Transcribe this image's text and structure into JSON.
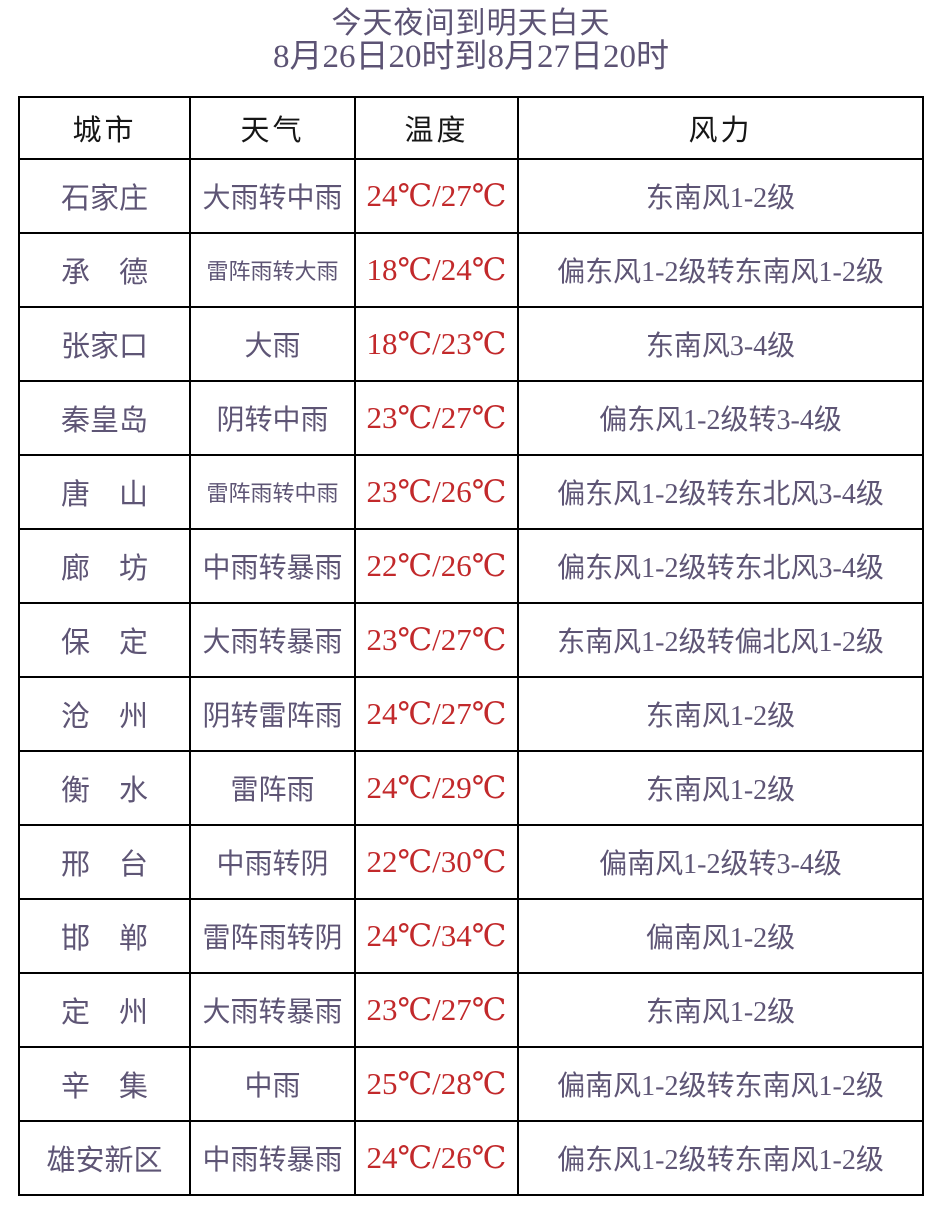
{
  "title": {
    "line1": "今天夜间到明天白天",
    "line2": "8月26日20时到8月27日20时"
  },
  "table": {
    "headers": [
      "城市",
      "天气",
      "温度",
      "风力"
    ],
    "rows": [
      {
        "city": "石家庄",
        "weather": "大雨转中雨",
        "temp": "24℃/27℃",
        "wind": "东南风1-2级"
      },
      {
        "city": "承　德",
        "weather": "雷阵雨转大雨",
        "temp": "18℃/24℃",
        "wind": "偏东风1-2级转东南风1-2级"
      },
      {
        "city": "张家口",
        "weather": "大雨",
        "temp": "18℃/23℃",
        "wind": "东南风3-4级"
      },
      {
        "city": "秦皇岛",
        "weather": "阴转中雨",
        "temp": "23℃/27℃",
        "wind": "偏东风1-2级转3-4级"
      },
      {
        "city": "唐　山",
        "weather": "雷阵雨转中雨",
        "temp": "23℃/26℃",
        "wind": "偏东风1-2级转东北风3-4级"
      },
      {
        "city": "廊　坊",
        "weather": "中雨转暴雨",
        "temp": "22℃/26℃",
        "wind": "偏东风1-2级转东北风3-4级"
      },
      {
        "city": "保　定",
        "weather": "大雨转暴雨",
        "temp": "23℃/27℃",
        "wind": "东南风1-2级转偏北风1-2级"
      },
      {
        "city": "沧　州",
        "weather": "阴转雷阵雨",
        "temp": "24℃/27℃",
        "wind": "东南风1-2级"
      },
      {
        "city": "衡　水",
        "weather": "雷阵雨",
        "temp": "24℃/29℃",
        "wind": "东南风1-2级"
      },
      {
        "city": "邢　台",
        "weather": "中雨转阴",
        "temp": "22℃/30℃",
        "wind": "偏南风1-2级转3-4级"
      },
      {
        "city": "邯　郸",
        "weather": "雷阵雨转阴",
        "temp": "24℃/34℃",
        "wind": "偏南风1-2级"
      },
      {
        "city": "定　州",
        "weather": "大雨转暴雨",
        "temp": "23℃/27℃",
        "wind": "东南风1-2级"
      },
      {
        "city": "辛　集",
        "weather": "中雨",
        "temp": "25℃/28℃",
        "wind": "偏南风1-2级转东南风1-2级"
      },
      {
        "city": "雄安新区",
        "weather": "中雨转暴雨",
        "temp": "24℃/26℃",
        "wind": "偏东风1-2级转东南风1-2级"
      }
    ]
  },
  "colors": {
    "title_text": "#5c5374",
    "body_text": "#5e5575",
    "temperature_text": "#c2292b",
    "header_text": "#161616",
    "table_border": "#000000",
    "background": "#ffffff"
  }
}
